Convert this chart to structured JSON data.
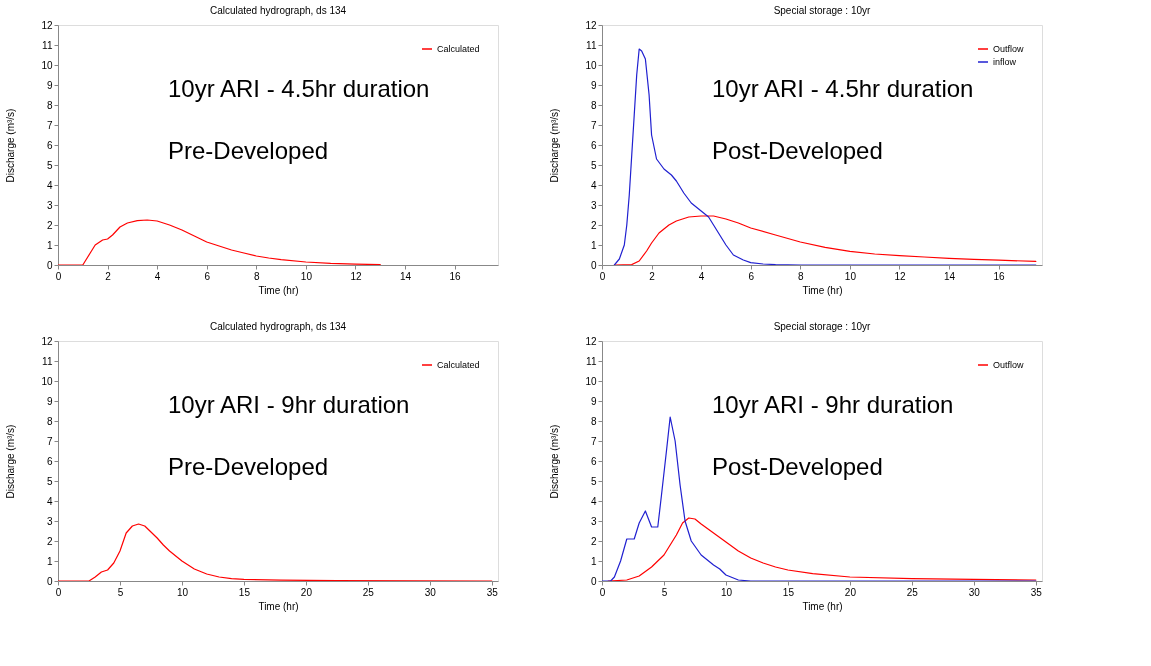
{
  "chart_data": [
    {
      "type": "line",
      "title": "Calculated hydrograph,  ds 134",
      "xlabel": "Time (hr)",
      "ylabel": "Discharge (m³/s)",
      "xlim": [
        0,
        17.75
      ],
      "xticks": [
        0,
        2,
        4,
        6,
        8,
        10,
        12,
        14,
        16
      ],
      "ylim": [
        0,
        12
      ],
      "yticks": [
        0,
        1,
        2,
        3,
        4,
        5,
        6,
        7,
        8,
        9,
        10,
        11,
        12
      ],
      "grid": false,
      "legend": "top right",
      "annotations": [
        "10yr ARI - 4.5hr duration",
        "Pre-Developed"
      ],
      "series": [
        {
          "name": "Calculated",
          "color": "#ff0000",
          "x": [
            0,
            1,
            1.1,
            1.3,
            1.5,
            1.8,
            2.0,
            2.2,
            2.5,
            2.8,
            3.2,
            3.6,
            4.0,
            4.5,
            5.0,
            5.5,
            6,
            6.5,
            7,
            7.5,
            8,
            8.5,
            9,
            10,
            11,
            12,
            13
          ],
          "values": [
            0,
            0,
            0.2,
            0.6,
            1.0,
            1.25,
            1.3,
            1.5,
            1.9,
            2.1,
            2.22,
            2.25,
            2.2,
            2.0,
            1.75,
            1.45,
            1.15,
            0.95,
            0.75,
            0.6,
            0.45,
            0.35,
            0.27,
            0.15,
            0.08,
            0.04,
            0.02
          ]
        }
      ]
    },
    {
      "type": "line",
      "title": "Special storage :   10yr",
      "xlabel": "Time (hr)",
      "ylabel": "Discharge (m³/s)",
      "xlim": [
        0,
        17.75
      ],
      "xticks": [
        0,
        2,
        4,
        6,
        8,
        10,
        12,
        14,
        16
      ],
      "ylim": [
        0,
        12
      ],
      "yticks": [
        0,
        1,
        2,
        3,
        4,
        5,
        6,
        7,
        8,
        9,
        10,
        11,
        12
      ],
      "grid": false,
      "legend": "top right",
      "annotations": [
        "10yr ARI - 4.5hr duration",
        "Post-Developed"
      ],
      "series": [
        {
          "name": "Outflow",
          "color": "#ff0000",
          "x": [
            0.5,
            1.2,
            1.5,
            1.8,
            2.0,
            2.3,
            2.7,
            3.0,
            3.5,
            4.0,
            4.5,
            5.0,
            5.5,
            6,
            7,
            8,
            9,
            10,
            11,
            12,
            13,
            14,
            15,
            16,
            17.5
          ],
          "values": [
            0,
            0.02,
            0.2,
            0.7,
            1.1,
            1.6,
            2.0,
            2.2,
            2.4,
            2.45,
            2.45,
            2.3,
            2.1,
            1.85,
            1.5,
            1.15,
            0.88,
            0.68,
            0.55,
            0.47,
            0.4,
            0.33,
            0.28,
            0.24,
            0.18
          ]
        },
        {
          "name": "inflow",
          "color": "#2020d0",
          "x": [
            0.5,
            0.7,
            0.9,
            1.0,
            1.1,
            1.2,
            1.3,
            1.4,
            1.5,
            1.6,
            1.75,
            1.9,
            2.0,
            2.2,
            2.5,
            2.8,
            3.0,
            3.3,
            3.6,
            4.0,
            4.3,
            4.6,
            5.0,
            5.3,
            5.7,
            6.0,
            6.5,
            7,
            8,
            17.5
          ],
          "values": [
            0,
            0.3,
            1,
            2,
            3.5,
            5.5,
            7.5,
            9.5,
            10.8,
            10.7,
            10.3,
            8.5,
            6.5,
            5.3,
            4.8,
            4.5,
            4.2,
            3.6,
            3.1,
            2.7,
            2.4,
            1.8,
            1.0,
            0.5,
            0.25,
            0.12,
            0.05,
            0.02,
            0,
            0
          ]
        }
      ]
    },
    {
      "type": "line",
      "title": "Calculated hydrograph,  ds 134",
      "xlabel": "Time (hr)",
      "ylabel": "Discharge (m³/s)",
      "xlim": [
        0,
        35.5
      ],
      "xticks": [
        0,
        5,
        10,
        15,
        20,
        25,
        30,
        35
      ],
      "ylim": [
        0,
        12
      ],
      "yticks": [
        0,
        1,
        2,
        3,
        4,
        5,
        6,
        7,
        8,
        9,
        10,
        11,
        12
      ],
      "grid": false,
      "legend": "top right",
      "annotations": [
        "10yr ARI - 9hr duration",
        "Pre-Developed"
      ],
      "series": [
        {
          "name": "Calculated",
          "color": "#ff0000",
          "x": [
            0,
            2.5,
            3,
            3.5,
            4,
            4.5,
            5,
            5.5,
            6,
            6.5,
            7,
            7.5,
            8,
            8.5,
            9,
            10,
            11,
            12,
            13,
            14,
            15,
            18,
            22.5,
            35
          ],
          "values": [
            0,
            0,
            0.2,
            0.45,
            0.55,
            0.9,
            1.5,
            2.4,
            2.75,
            2.85,
            2.75,
            2.45,
            2.15,
            1.8,
            1.5,
            1.0,
            0.6,
            0.35,
            0.2,
            0.12,
            0.08,
            0.04,
            0.02,
            0
          ]
        }
      ]
    },
    {
      "type": "line",
      "title": "Special storage :   10yr",
      "xlabel": "Time (hr)",
      "ylabel": "Discharge (m³/s)",
      "xlim": [
        0,
        35.5
      ],
      "xticks": [
        0,
        5,
        10,
        15,
        20,
        25,
        30,
        35
      ],
      "ylim": [
        0,
        12
      ],
      "yticks": [
        0,
        1,
        2,
        3,
        4,
        5,
        6,
        7,
        8,
        9,
        10,
        11,
        12
      ],
      "grid": false,
      "legend": "top right",
      "annotations": [
        "10yr ARI - 9hr duration",
        "Post-Developed"
      ],
      "series": [
        {
          "name": "Outflow",
          "color": "#ff0000",
          "x": [
            0.5,
            2,
            3,
            4,
            5,
            6,
            6.5,
            7,
            7.5,
            8,
            9,
            10,
            11,
            12,
            13,
            14,
            15,
            17,
            20,
            25,
            30,
            35
          ],
          "values": [
            0,
            0.05,
            0.25,
            0.7,
            1.3,
            2.3,
            2.9,
            3.15,
            3.1,
            2.85,
            2.4,
            1.95,
            1.5,
            1.15,
            0.9,
            0.7,
            0.55,
            0.37,
            0.2,
            0.12,
            0.08,
            0.05
          ]
        },
        {
          "color": "#2020d0",
          "x": [
            0,
            0.7,
            1,
            1.5,
            2,
            2.6,
            3,
            3.5,
            4,
            4.5,
            4.8,
            5.2,
            5.5,
            5.9,
            6.3,
            6.7,
            7.2,
            8,
            9,
            9.5,
            10,
            11,
            12,
            35
          ],
          "values": [
            0,
            0,
            0.2,
            1.0,
            2.1,
            2.1,
            2.9,
            3.5,
            2.7,
            2.7,
            4.3,
            6.5,
            8.2,
            7.0,
            4.8,
            3.0,
            2.0,
            1.3,
            0.8,
            0.6,
            0.3,
            0.05,
            0,
            0
          ]
        }
      ]
    }
  ]
}
